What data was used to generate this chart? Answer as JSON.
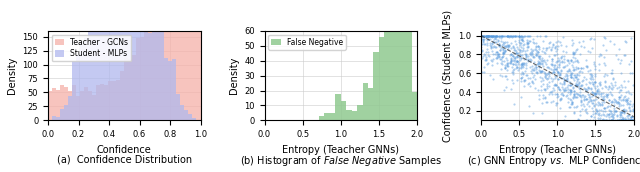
{
  "fig_width": 6.4,
  "fig_height": 1.72,
  "dpi": 100,
  "plot1": {
    "caption": "(a)  Confidence Distribution",
    "xlabel": "Confidence",
    "ylabel": "Density",
    "xlim": [
      0.0,
      1.0
    ],
    "ylim": [
      0,
      160
    ],
    "yticks": [
      0,
      25,
      50,
      75,
      100,
      125,
      150
    ],
    "xticks": [
      0.0,
      0.2,
      0.4,
      0.6,
      0.8,
      1.0
    ],
    "gcn_color": "#f5b0a8",
    "mlp_color": "#b0b8ee",
    "gcn_alpha": 0.75,
    "mlp_alpha": 0.75,
    "gcn_label": "Teacher - GCNs",
    "mlp_label": "Student - MLPs",
    "n_bins": 38
  },
  "plot2": {
    "caption": "(b) Histogram of False Negative Samples",
    "xlabel": "Entropy (Teacher GNNs)",
    "ylabel": "Density",
    "xlim": [
      0.0,
      2.0
    ],
    "ylim": [
      0,
      60
    ],
    "yticks": [
      0,
      10,
      20,
      30,
      40,
      50,
      60
    ],
    "xticks": [
      0.0,
      0.5,
      1.0,
      1.5,
      2.0
    ],
    "color": "#90c990",
    "label": "False Negative",
    "n_bins": 28
  },
  "plot3": {
    "caption": "(c) GNN Entropy vs. MLP Confidence",
    "xlabel": "Entropy (Teacher GNNs)",
    "ylabel": "Confidence (Student MLPs)",
    "xlim": [
      0.0,
      2.0
    ],
    "ylim": [
      0.1,
      1.05
    ],
    "yticks": [
      0.2,
      0.4,
      0.6,
      0.8,
      1.0
    ],
    "xticks": [
      0.0,
      0.5,
      1.0,
      1.5,
      2.0
    ],
    "scatter_color": "#5599dd",
    "line_color": "#444444",
    "n_points": 1200,
    "seed": 42
  }
}
